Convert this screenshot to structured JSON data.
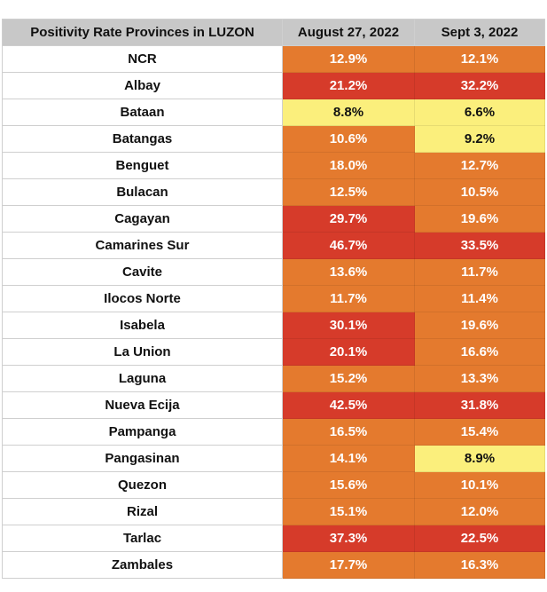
{
  "table": {
    "headers": [
      "Positivity Rate Provinces in LUZON",
      "August 27, 2022",
      "Sept 3, 2022"
    ],
    "rows": [
      [
        "NCR",
        "12.9%",
        "12.1%"
      ],
      [
        "Albay",
        "21.2%",
        "32.2%"
      ],
      [
        "Bataan",
        "8.8%",
        "6.6%"
      ],
      [
        "Batangas",
        "10.6%",
        "9.2%"
      ],
      [
        "Benguet",
        "18.0%",
        "12.7%"
      ],
      [
        "Bulacan",
        "12.5%",
        "10.5%"
      ],
      [
        "Cagayan",
        "29.7%",
        "19.6%"
      ],
      [
        "Camarines Sur",
        "46.7%",
        "33.5%"
      ],
      [
        "Cavite",
        "13.6%",
        "11.7%"
      ],
      [
        "Ilocos Norte",
        "11.7%",
        "11.4%"
      ],
      [
        "Isabela",
        "30.1%",
        "19.6%"
      ],
      [
        "La Union",
        "20.1%",
        "16.6%"
      ],
      [
        "Laguna",
        "15.2%",
        "13.3%"
      ],
      [
        "Nueva Ecija",
        "42.5%",
        "31.8%"
      ],
      [
        "Pampanga",
        "16.5%",
        "15.4%"
      ],
      [
        "Pangasinan",
        "14.1%",
        "8.9%"
      ],
      [
        "Quezon",
        "15.6%",
        "10.1%"
      ],
      [
        "Rizal",
        "15.1%",
        "12.0%"
      ],
      [
        "Tarlac",
        "37.3%",
        "22.5%"
      ],
      [
        "Zambales",
        "17.7%",
        "16.3%"
      ]
    ]
  },
  "colors": {
    "header": "#c8c8c8",
    "low": "#fbef7c",
    "moderate": "#e47a2e",
    "high": "#d63b2a"
  }
}
